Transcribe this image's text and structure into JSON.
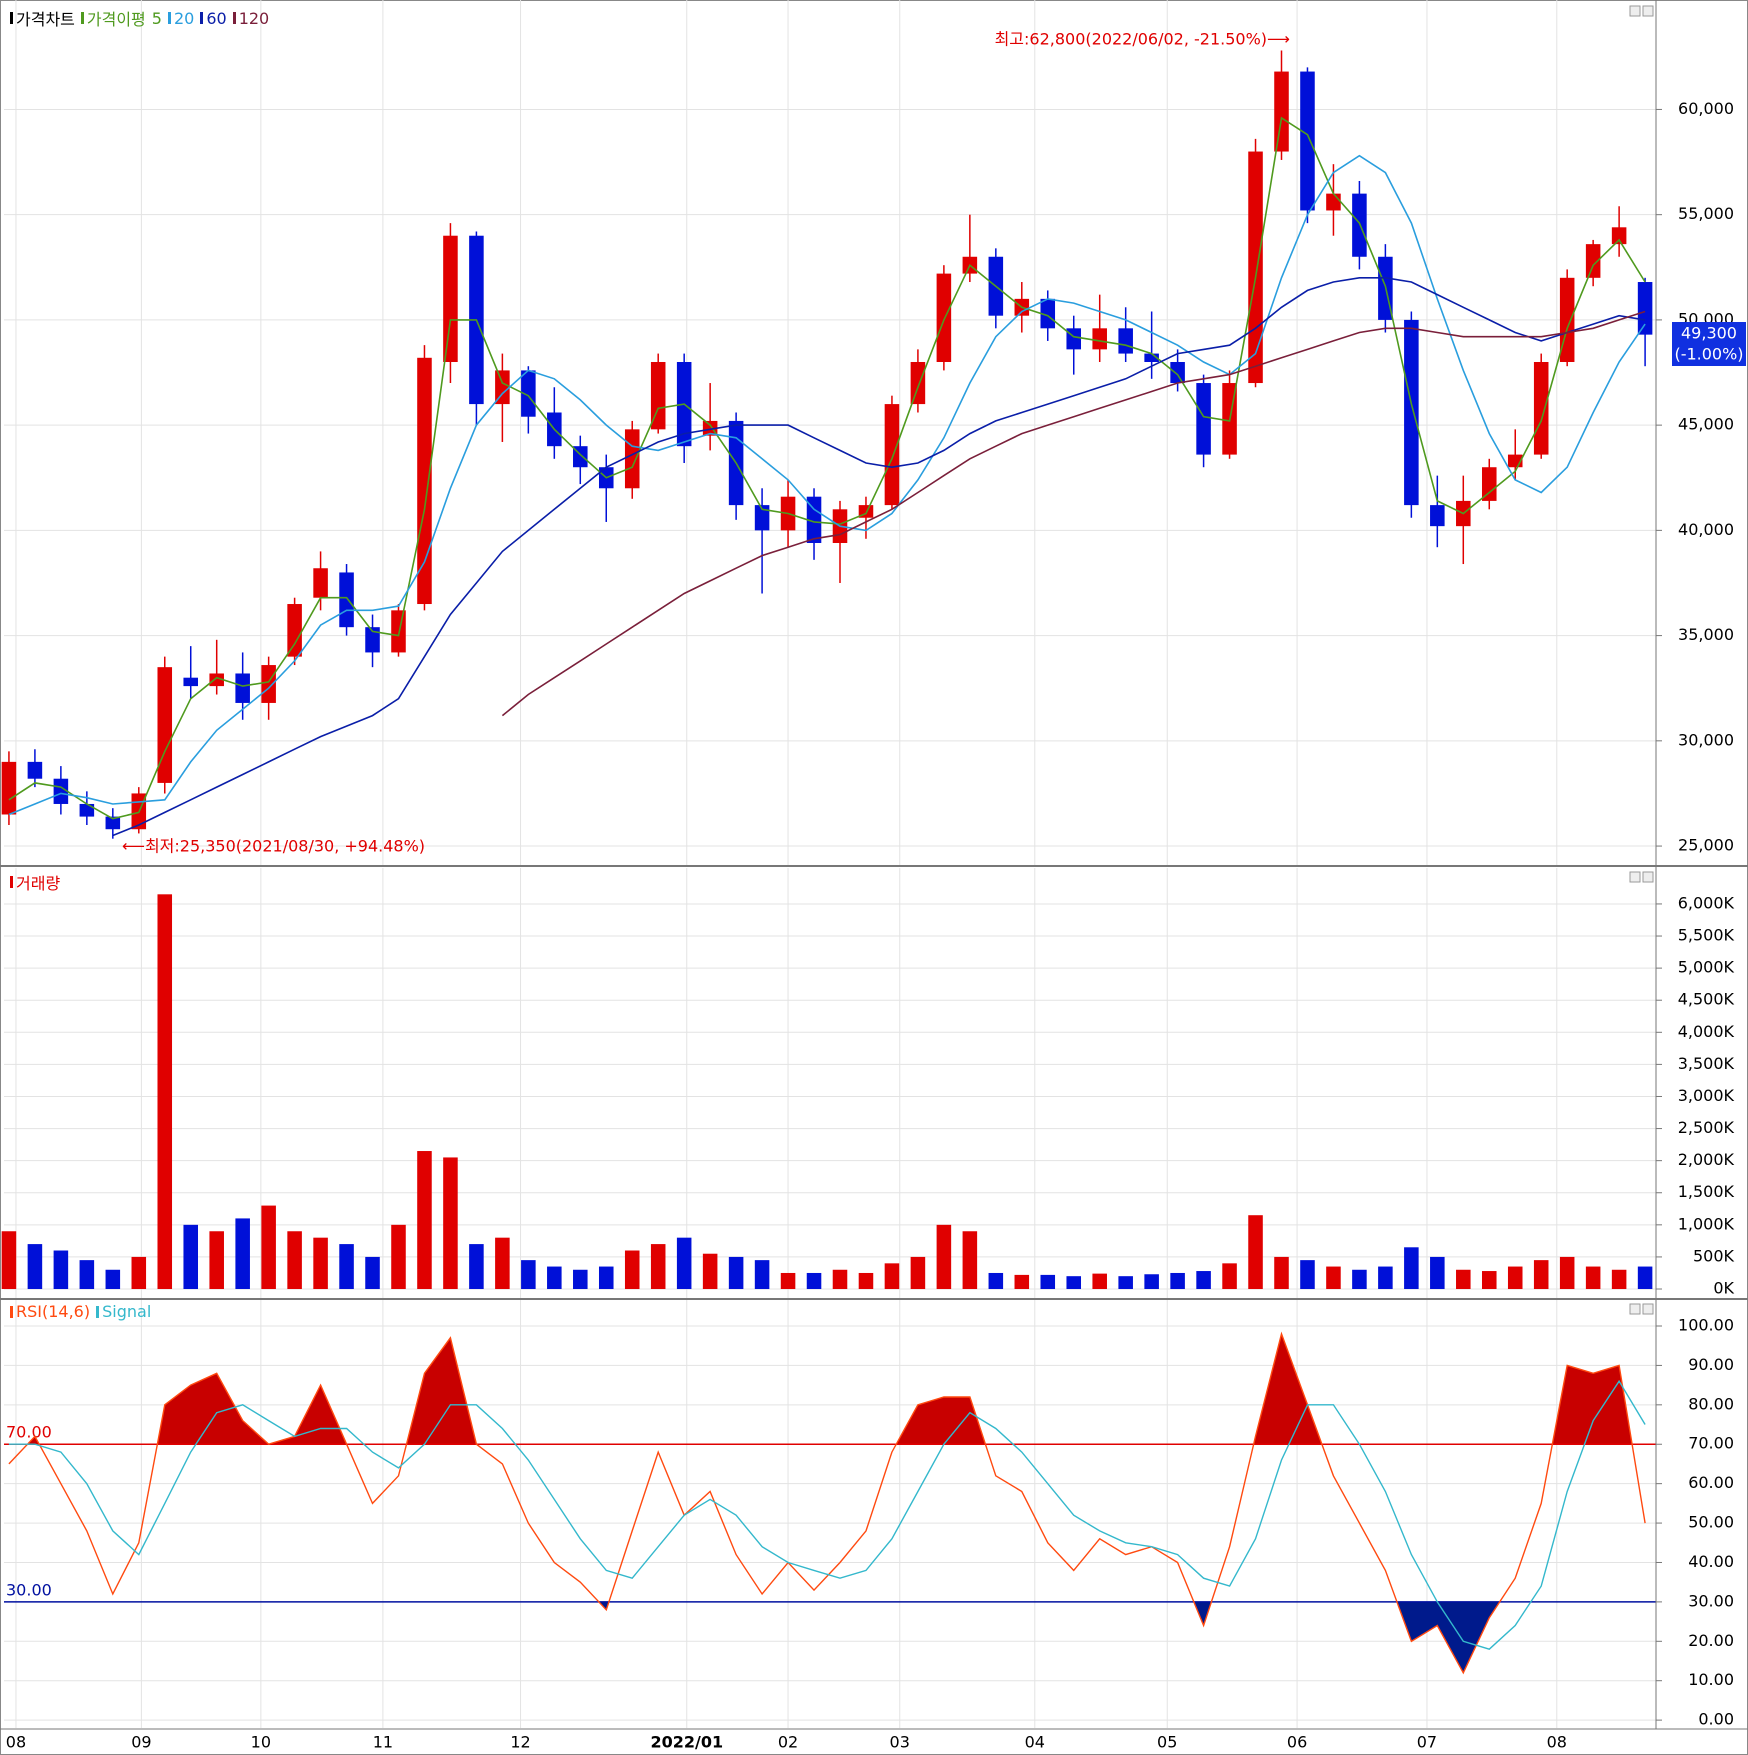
{
  "chart_data": [
    {
      "type": "candlestick",
      "title": "가격차트",
      "ma_label": "가격이평",
      "up_color": "#e00000",
      "down_color": "#0010d8",
      "open": [
        26500,
        29000,
        28200,
        27000,
        26400,
        25800,
        28000,
        33000,
        32600,
        33200,
        31800,
        34000,
        36800,
        38000,
        35400,
        34200,
        36500,
        48000,
        54000,
        46000,
        47600,
        45600,
        44000,
        43000,
        42000,
        44800,
        48000,
        44500,
        45200,
        41200,
        40000,
        41600,
        39400,
        40600,
        41200,
        46000,
        48000,
        52200,
        53000,
        50200,
        51000,
        49600,
        48600,
        49600,
        48400,
        48000,
        47000,
        43600,
        47000,
        58000,
        61800,
        55200,
        56000,
        53000,
        50000,
        41200,
        40200,
        41400,
        43000,
        43600,
        48000,
        52000,
        53600,
        51800
      ],
      "high": [
        29500,
        29600,
        28800,
        27600,
        26800,
        27800,
        34000,
        34500,
        34800,
        34200,
        34000,
        36800,
        39000,
        38400,
        36000,
        36500,
        48800,
        54600,
        54200,
        48400,
        47800,
        46800,
        44500,
        43600,
        45200,
        48400,
        48400,
        47000,
        45600,
        42000,
        42400,
        42000,
        41400,
        41600,
        46400,
        48600,
        52600,
        55000,
        53400,
        51800,
        51400,
        50200,
        51200,
        50600,
        50400,
        48600,
        47400,
        47600,
        58600,
        62800,
        62000,
        57400,
        56600,
        53600,
        50400,
        42600,
        42600,
        43400,
        44800,
        48400,
        52400,
        53800,
        55400,
        52000
      ],
      "low": [
        26000,
        27800,
        26500,
        26000,
        25350,
        25600,
        27500,
        32000,
        32200,
        31000,
        31000,
        33600,
        36200,
        35000,
        33500,
        34000,
        36200,
        47000,
        45000,
        44200,
        44600,
        43400,
        42200,
        40400,
        41500,
        44600,
        43200,
        43800,
        40500,
        37000,
        39200,
        38600,
        37500,
        39600,
        41000,
        45600,
        47600,
        51800,
        49600,
        49400,
        49000,
        47400,
        48000,
        48000,
        47200,
        46600,
        43000,
        43400,
        46800,
        57600,
        54600,
        54000,
        52400,
        49400,
        40600,
        39200,
        38400,
        41000,
        42400,
        43400,
        47800,
        51600,
        53000,
        47800
      ],
      "close": [
        29000,
        28200,
        27000,
        26400,
        25800,
        27500,
        33500,
        32600,
        33200,
        31800,
        33600,
        36500,
        38200,
        35400,
        34200,
        36200,
        48200,
        54000,
        46000,
        47600,
        45400,
        44000,
        43000,
        42000,
        44800,
        48000,
        44000,
        45200,
        41200,
        40000,
        41600,
        39400,
        41000,
        41200,
        46000,
        48000,
        52200,
        53000,
        50200,
        51000,
        49600,
        48600,
        49600,
        48400,
        48000,
        47000,
        43600,
        47000,
        58000,
        61800,
        55200,
        56000,
        53000,
        50000,
        41200,
        40200,
        41400,
        43000,
        43600,
        48000,
        52000,
        53600,
        54400,
        49300
      ],
      "series": [
        {
          "name": "5",
          "color": "#4f9a1e",
          "values": [
            27200,
            28000,
            27800,
            27000,
            26300,
            26600,
            29500,
            32000,
            33000,
            32600,
            32800,
            34600,
            36800,
            36800,
            35200,
            35000,
            41000,
            50000,
            50000,
            47000,
            46400,
            44800,
            43600,
            42500,
            43000,
            45800,
            46000,
            45000,
            43200,
            41000,
            40800,
            40400,
            40300,
            40800,
            43400,
            46800,
            50000,
            52600,
            51600,
            50600,
            50200,
            49200,
            49000,
            48800,
            48400,
            47400,
            45400,
            45200,
            52000,
            59600,
            58800,
            56000,
            54600,
            51600,
            46000,
            41400,
            40800,
            41800,
            42800,
            45200,
            49600,
            52600,
            53800,
            51800
          ]
        },
        {
          "name": "20",
          "color": "#2a9ede",
          "values": [
            26500,
            27000,
            27500,
            27300,
            27000,
            27100,
            27200,
            29000,
            30500,
            31500,
            32500,
            33800,
            35500,
            36200,
            36200,
            36400,
            38500,
            42000,
            45000,
            46500,
            47600,
            47200,
            46200,
            45000,
            44000,
            43800,
            44200,
            44600,
            44400,
            43400,
            42400,
            41000,
            40200,
            40000,
            40800,
            42400,
            44400,
            47000,
            49200,
            50400,
            51000,
            50800,
            50400,
            50000,
            49400,
            48800,
            48000,
            47400,
            48400,
            52000,
            55000,
            57000,
            57800,
            57000,
            54600,
            51000,
            47600,
            44600,
            42400,
            41800,
            43000,
            45600,
            48000,
            49800
          ]
        },
        {
          "name": "60",
          "color": "#0a1ea8",
          "values": [
            null,
            null,
            null,
            null,
            25500,
            26000,
            26600,
            27200,
            27800,
            28400,
            29000,
            29600,
            30200,
            30700,
            31200,
            32000,
            34000,
            36000,
            37500,
            39000,
            40000,
            41000,
            42000,
            43000,
            43600,
            44200,
            44600,
            44800,
            45000,
            45000,
            45000,
            44400,
            43800,
            43200,
            43000,
            43200,
            43800,
            44600,
            45200,
            45600,
            46000,
            46400,
            46800,
            47200,
            47800,
            48400,
            48600,
            48800,
            49600,
            50600,
            51400,
            51800,
            52000,
            52000,
            51800,
            51200,
            50600,
            50000,
            49400,
            49000,
            49400,
            49800,
            50200,
            50000
          ]
        },
        {
          "name": "120",
          "color": "#7a1f3a",
          "values": [
            null,
            null,
            null,
            null,
            null,
            null,
            null,
            null,
            null,
            null,
            null,
            null,
            null,
            null,
            null,
            null,
            null,
            null,
            null,
            31200,
            32200,
            33000,
            33800,
            34600,
            35400,
            36200,
            37000,
            37600,
            38200,
            38800,
            39200,
            39600,
            39800,
            40400,
            41000,
            41800,
            42600,
            43400,
            44000,
            44600,
            45000,
            45400,
            45800,
            46200,
            46600,
            47000,
            47200,
            47400,
            47800,
            48200,
            48600,
            49000,
            49400,
            49600,
            49600,
            49400,
            49200,
            49200,
            49200,
            49200,
            49400,
            49600,
            50000,
            50400
          ]
        }
      ],
      "annotations": [
        "최고:62,800(2022/06/02, -21.50%)⟶",
        "⟵최저:25,350(2021/08/30, +94.48%)"
      ],
      "last_price_label": "49,300",
      "last_change_label": "(-1.00%)",
      "ylim": [
        24100,
        65200
      ],
      "yticks": [
        {
          "value": 25000,
          "label": "25,000"
        },
        {
          "value": 30000,
          "label": "30,000"
        },
        {
          "value": 35000,
          "label": "35,000"
        },
        {
          "value": 40000,
          "label": "40,000"
        },
        {
          "value": 45000,
          "label": "45,000"
        },
        {
          "value": 50000,
          "label": "50,000"
        },
        {
          "value": 55000,
          "label": "55,000"
        },
        {
          "value": 60000,
          "label": "60,000"
        }
      ],
      "grid": true
    },
    {
      "type": "bar",
      "title": "거래량",
      "up_color": "#e00000",
      "down_color": "#0010d8",
      "values": [
        900,
        700,
        600,
        450,
        300,
        500,
        6150,
        1000,
        900,
        1100,
        1300,
        900,
        800,
        700,
        500,
        1000,
        2150,
        2050,
        700,
        800,
        450,
        350,
        300,
        350,
        600,
        700,
        800,
        550,
        500,
        450,
        250,
        250,
        300,
        250,
        400,
        500,
        1000,
        900,
        250,
        220,
        220,
        200,
        240,
        200,
        230,
        250,
        280,
        400,
        1150,
        500,
        450,
        350,
        300,
        350,
        650,
        500,
        300,
        280,
        350,
        450,
        500,
        350,
        300,
        350
      ],
      "ylim": [
        -140,
        6560
      ],
      "yticks": [
        {
          "value": 0,
          "label": "0K"
        },
        {
          "value": 500,
          "label": "500K"
        },
        {
          "value": 1000,
          "label": "1,000K"
        },
        {
          "value": 1500,
          "label": "1,500K"
        },
        {
          "value": 2000,
          "label": "2,000K"
        },
        {
          "value": 2500,
          "label": "2,500K"
        },
        {
          "value": 3000,
          "label": "3,000K"
        },
        {
          "value": 3500,
          "label": "3,500K"
        },
        {
          "value": 4000,
          "label": "4,000K"
        },
        {
          "value": 4500,
          "label": "4,500K"
        },
        {
          "value": 5000,
          "label": "5,000K"
        },
        {
          "value": 5500,
          "label": "5,500K"
        },
        {
          "value": 6000,
          "label": "6,000K"
        }
      ],
      "grid": true
    },
    {
      "type": "line",
      "series": [
        {
          "name": "RSI(14,6)",
          "color": "#ff4a10",
          "values": [
            65,
            72,
            60,
            48,
            32,
            45,
            80,
            85,
            88,
            76,
            70,
            72,
            85,
            70,
            55,
            62,
            88,
            97,
            70,
            65,
            50,
            40,
            35,
            28,
            48,
            68,
            52,
            58,
            42,
            32,
            40,
            33,
            40,
            48,
            68,
            80,
            82,
            82,
            62,
            58,
            45,
            38,
            46,
            42,
            44,
            40,
            24,
            44,
            72,
            98,
            80,
            62,
            50,
            38,
            20,
            24,
            12,
            26,
            36,
            55,
            90,
            88,
            90,
            50
          ]
        },
        {
          "name": "Signal",
          "color": "#34b8cc",
          "values": [
            70,
            70,
            68,
            60,
            48,
            42,
            55,
            68,
            78,
            80,
            76,
            72,
            74,
            74,
            68,
            64,
            70,
            80,
            80,
            74,
            66,
            56,
            46,
            38,
            36,
            44,
            52,
            56,
            52,
            44,
            40,
            38,
            36,
            38,
            46,
            58,
            70,
            78,
            74,
            68,
            60,
            52,
            48,
            45,
            44,
            42,
            36,
            34,
            46,
            66,
            80,
            80,
            70,
            58,
            42,
            30,
            20,
            18,
            24,
            34,
            58,
            76,
            86,
            75
          ]
        }
      ],
      "levels": [
        {
          "value": 70,
          "label": "70.00",
          "color": "#e00000",
          "fill": "#c80000"
        },
        {
          "value": 30,
          "label": "30.00",
          "color": "#0010a0",
          "fill": "#001a8c"
        }
      ],
      "ylim": [
        -2,
        106.6
      ],
      "yticks": [
        {
          "value": 0,
          "label": "0.00"
        },
        {
          "value": 10,
          "label": "10.00"
        },
        {
          "value": 20,
          "label": "20.00"
        },
        {
          "value": 30,
          "label": "30.00"
        },
        {
          "value": 40,
          "label": "40.00"
        },
        {
          "value": 50,
          "label": "50.00"
        },
        {
          "value": 60,
          "label": "60.00"
        },
        {
          "value": 70,
          "label": "70.00"
        },
        {
          "value": 80,
          "label": "80.00"
        },
        {
          "value": 90,
          "label": "90.00"
        },
        {
          "value": 100,
          "label": "100.00"
        }
      ],
      "xlim": [
        -0.19,
        63.42
      ],
      "xticks": [
        {
          "value": 0.27,
          "label": "08"
        },
        {
          "value": 5.1,
          "label": "09"
        },
        {
          "value": 9.7,
          "label": "10"
        },
        {
          "value": 14.4,
          "label": "11"
        },
        {
          "value": 19.7,
          "label": "12"
        },
        {
          "value": 26.1,
          "label": "2022/01"
        },
        {
          "value": 30.0,
          "label": "02"
        },
        {
          "value": 34.3,
          "label": "03"
        },
        {
          "value": 39.5,
          "label": "04"
        },
        {
          "value": 44.6,
          "label": "05"
        },
        {
          "value": 49.6,
          "label": "06"
        },
        {
          "value": 54.6,
          "label": "07"
        },
        {
          "value": 59.6,
          "label": "08"
        }
      ],
      "grid": true
    }
  ]
}
